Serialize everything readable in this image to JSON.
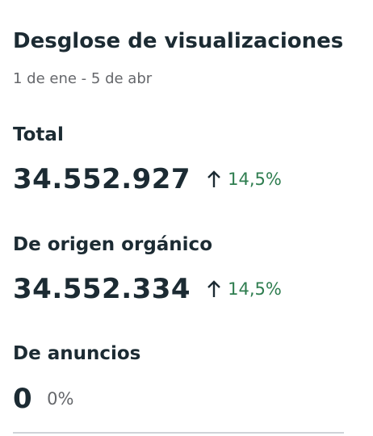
{
  "header": {
    "title": "Desglose de visualizaciones",
    "subtitle": "1 de ene - 5 de abr"
  },
  "metrics": [
    {
      "label": "Total",
      "value": "34.552.927",
      "change": "14,5%"
    },
    {
      "label": "De origen orgánico",
      "value": "34.552.334",
      "change": "14,5%"
    },
    {
      "label": "De anuncios",
      "value": "0",
      "change": "0%"
    }
  ]
}
